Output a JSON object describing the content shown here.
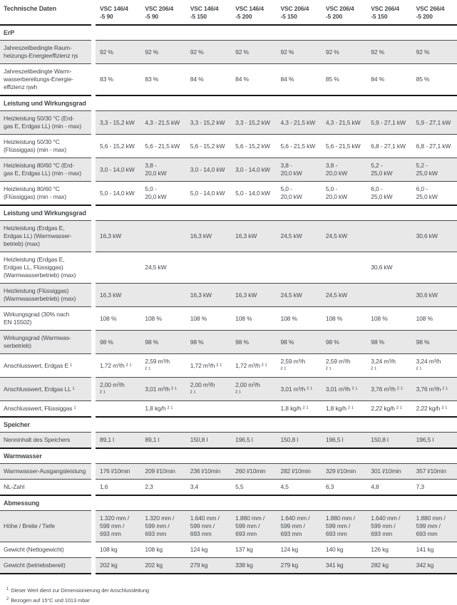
{
  "table": {
    "title": "Technische Daten",
    "colors": {
      "row_stripe": "#e8e8e8",
      "rule_thin": "#4a4a4a",
      "rule_thick": "#171717",
      "text": "#43484a"
    },
    "columns": [
      "VSC 146/4\n-5 90",
      "VSC 206/4\n-5 90",
      "VSC 146/4\n-5 150",
      "VSC 146/4\n-5 200",
      "VSC 206/4\n-5 150",
      "VSC 206/4\n-5 200",
      "VSC 266/4\n-5 150",
      "VSC 266/4\n-5 200"
    ],
    "sections": [
      {
        "title": "ErP",
        "rows": [
          {
            "label": "Jahreszeitbedingte Raum-\nheizungs-Energieeffizienz ηs",
            "values": [
              "92 %",
              "92 %",
              "92 %",
              "92 %",
              "92 %",
              "92 %",
              "92 %",
              "92 %"
            ]
          },
          {
            "label": "Jahreszeitbedingte Warm-\nwasserbereitungs-Energie-\neffizienz ηwh",
            "values": [
              "83 %",
              "83 %",
              "84 %",
              "84 %",
              "84 %",
              "85 %",
              "84 %",
              "85 %"
            ]
          }
        ]
      },
      {
        "title": "Leistung und Wirkungsgrad",
        "rows": [
          {
            "label": "Heizleistung 50/30 °C (Erd-\ngas E, Erdgas LL) (min - max)",
            "values": [
              "3,3 - 15,2 kW",
              "4,3 - 21,5 kW",
              "3,3 - 15,2 kW",
              "3,3 - 15,2 kW",
              "4,3 - 21,5 kW",
              "4,3 - 21,5 kW",
              "5,9 - 27,1 kW",
              "5,9 - 27,1 kW"
            ]
          },
          {
            "label": "Heizleistung 50/30 °C\n(Flüssiggas) (min - max)",
            "values": [
              "5,6 - 15,2 kW",
              "5,6 - 21,5 kW",
              "5,6 - 15,2 kW",
              "5,6 - 15,2 kW",
              "5,6 - 21,5 kW",
              "5,6 - 21,5 kW",
              "6,8 - 27,1 kW",
              "6,8 - 27,1 kW"
            ]
          },
          {
            "label": "Heizleistung 80/60 °C (Erd-\ngas E, Erdgas LL) (min - max)",
            "values": [
              "3,0 - 14,0 kW",
              "3,8 -\n20,0 kW",
              "3,0 - 14,0 kW",
              "3,0 - 14,0 kW",
              "3,8 -\n20,0 kW",
              "3,8 -\n20,0 kW",
              "5,2 -\n25,0 kW",
              "5,2 -\n25,0 kW"
            ]
          },
          {
            "label": "Heizleistung 80/60 °C\n(Flüssiggas) (min - max)",
            "values": [
              "5,0 - 14,0 kW",
              "5,0 -\n20,0 kW",
              "5,0 - 14,0 kW",
              "5,0 - 14,0 kW",
              "5,0 -\n20,0 kW",
              "5,0 -\n20,0 kW",
              "6,0 -\n25,0 kW",
              "6,0 -\n25,0 kW"
            ]
          }
        ]
      },
      {
        "title": "Leistung und Wirkungsgrad",
        "rows": [
          {
            "label": "Heizleistung (Erdgas E,\nErdgas LL) (Warmwasser-\nbetrieb) (max)",
            "values": [
              "16,3 kW",
              "",
              "16,3 kW",
              "16,3 kW",
              "24,5 kW",
              "24,5 kW",
              "",
              "30,6 kW"
            ]
          },
          {
            "label": "Heizleistung (Erdgas E,\nErdgas LL, Flüssiggas)\n(Warmwasserbetrieb) (max)",
            "values": [
              "",
              "24,5 kW",
              "",
              "",
              "",
              "",
              "30,6 kW",
              ""
            ]
          },
          {
            "label": "Heizleistung (Flüssiggas)\n(Warmwasserbetrieb) (max)",
            "values": [
              "16,3 kW",
              "",
              "16,3 kW",
              "16,3 kW",
              "24,5 kW",
              "24,5 kW",
              "",
              "30,6 kW"
            ]
          },
          {
            "label": "Wirkungsgrad (30% nach\nEN 15502)",
            "values": [
              "108 %",
              "108 %",
              "108 %",
              "108 %",
              "108 %",
              "108 %",
              "108 %",
              "108 %"
            ]
          },
          {
            "label": "Wirkungsgrad (Warmwas-\nserbetrieb)",
            "values": [
              "98 %",
              "98 %",
              "98 %",
              "98 %",
              "98 %",
              "98 %",
              "98 %",
              "98 %"
            ]
          },
          {
            "label": "Anschlusswert, Erdgas E ¹",
            "values": [
              "1,72 m³/h ² ¹",
              "2,59 m³/h\n² ¹",
              "1,72 m³/h ² ¹",
              "1,72 m³/h ² ¹",
              "2,59 m³/h\n² ¹",
              "2,59 m³/h\n² ¹",
              "3,24 m³/h\n² ¹",
              "3,24 m³/h\n² ¹"
            ]
          },
          {
            "label": "Anschlusswert, Erdgas LL ¹",
            "values": [
              "2,00 m³/h\n² ¹",
              "3,01 m³/h ² ¹",
              "2,00 m³/h\n² ¹",
              "2,00 m³/h\n² ¹",
              "3,01 m³/h ² ¹",
              "3,01 m³/h ² ¹",
              "3,76 m³/h ² ¹",
              "3,76 m³/h ² ¹"
            ]
          },
          {
            "label": "Anschlusswert, Flüssiggas ¹",
            "values": [
              "",
              "1,8 kg/h ² ¹",
              "",
              "",
              "1,8 kg/h ² ¹",
              "1,8 kg/h ² ¹",
              "2,22 kg/h ² ¹",
              "2,22 kg/h ² ¹"
            ]
          }
        ]
      },
      {
        "title": "Speicher",
        "rows": [
          {
            "label": "Nenninhalt des Speichers",
            "values": [
              "89,1 l",
              "89,1 l",
              "150,8 l",
              "196,5 l",
              "150,8 l",
              "196,5 l",
              "150,8 l",
              "196,5 l"
            ]
          }
        ]
      },
      {
        "title": "Warmwasser",
        "rows": [
          {
            "label": "Warmwasser-Ausgangsleistung",
            "values": [
              "176 l/10min",
              "209 l/10min",
              "236 l/10min",
              "260 l/10min",
              "282 l/10min",
              "329 l/10min",
              "301 l/10min",
              "357 l/10min"
            ]
          },
          {
            "label": "NL-Zahl",
            "values": [
              "1,6",
              "2,3",
              "3,4",
              "5,5",
              "4,5",
              "6,3",
              "4,8",
              "7,3"
            ]
          }
        ]
      },
      {
        "title": "Abmessung",
        "rows": [
          {
            "label": "Höhe / Breite / Tiefe",
            "values": [
              "1.320 mm /\n599 mm /\n693 mm",
              "1.320 mm /\n599 mm /\n693 mm",
              "1.640 mm /\n599 mm /\n693 mm",
              "1.880 mm /\n599 mm /\n693 mm",
              "1.640 mm /\n599 mm /\n693 mm",
              "1.880 mm /\n599 mm /\n693 mm",
              "1.640 mm /\n599 mm /\n693 mm",
              "1.880 mm /\n599 mm /\n693 mm"
            ]
          },
          {
            "label": "Gewicht (Nettogewicht)",
            "values": [
              "108 kg",
              "108 kg",
              "124 kg",
              "137 kg",
              "124 kg",
              "140 kg",
              "126 kg",
              "141 kg"
            ]
          },
          {
            "label": "Gewicht (betriebsbereit)",
            "values": [
              "202 kg",
              "202 kg",
              "279 kg",
              "338 kg",
              "279 kg",
              "341 kg",
              "282 kg",
              "342 kg"
            ]
          }
        ]
      }
    ],
    "footnotes": [
      {
        "marker": "1",
        "text": "Dieser Wert dient zur Dimensionierung der Anschlussleitung"
      },
      {
        "marker": "2",
        "text": "Bezogen auf 15°C und 1013 mbar"
      }
    ]
  }
}
